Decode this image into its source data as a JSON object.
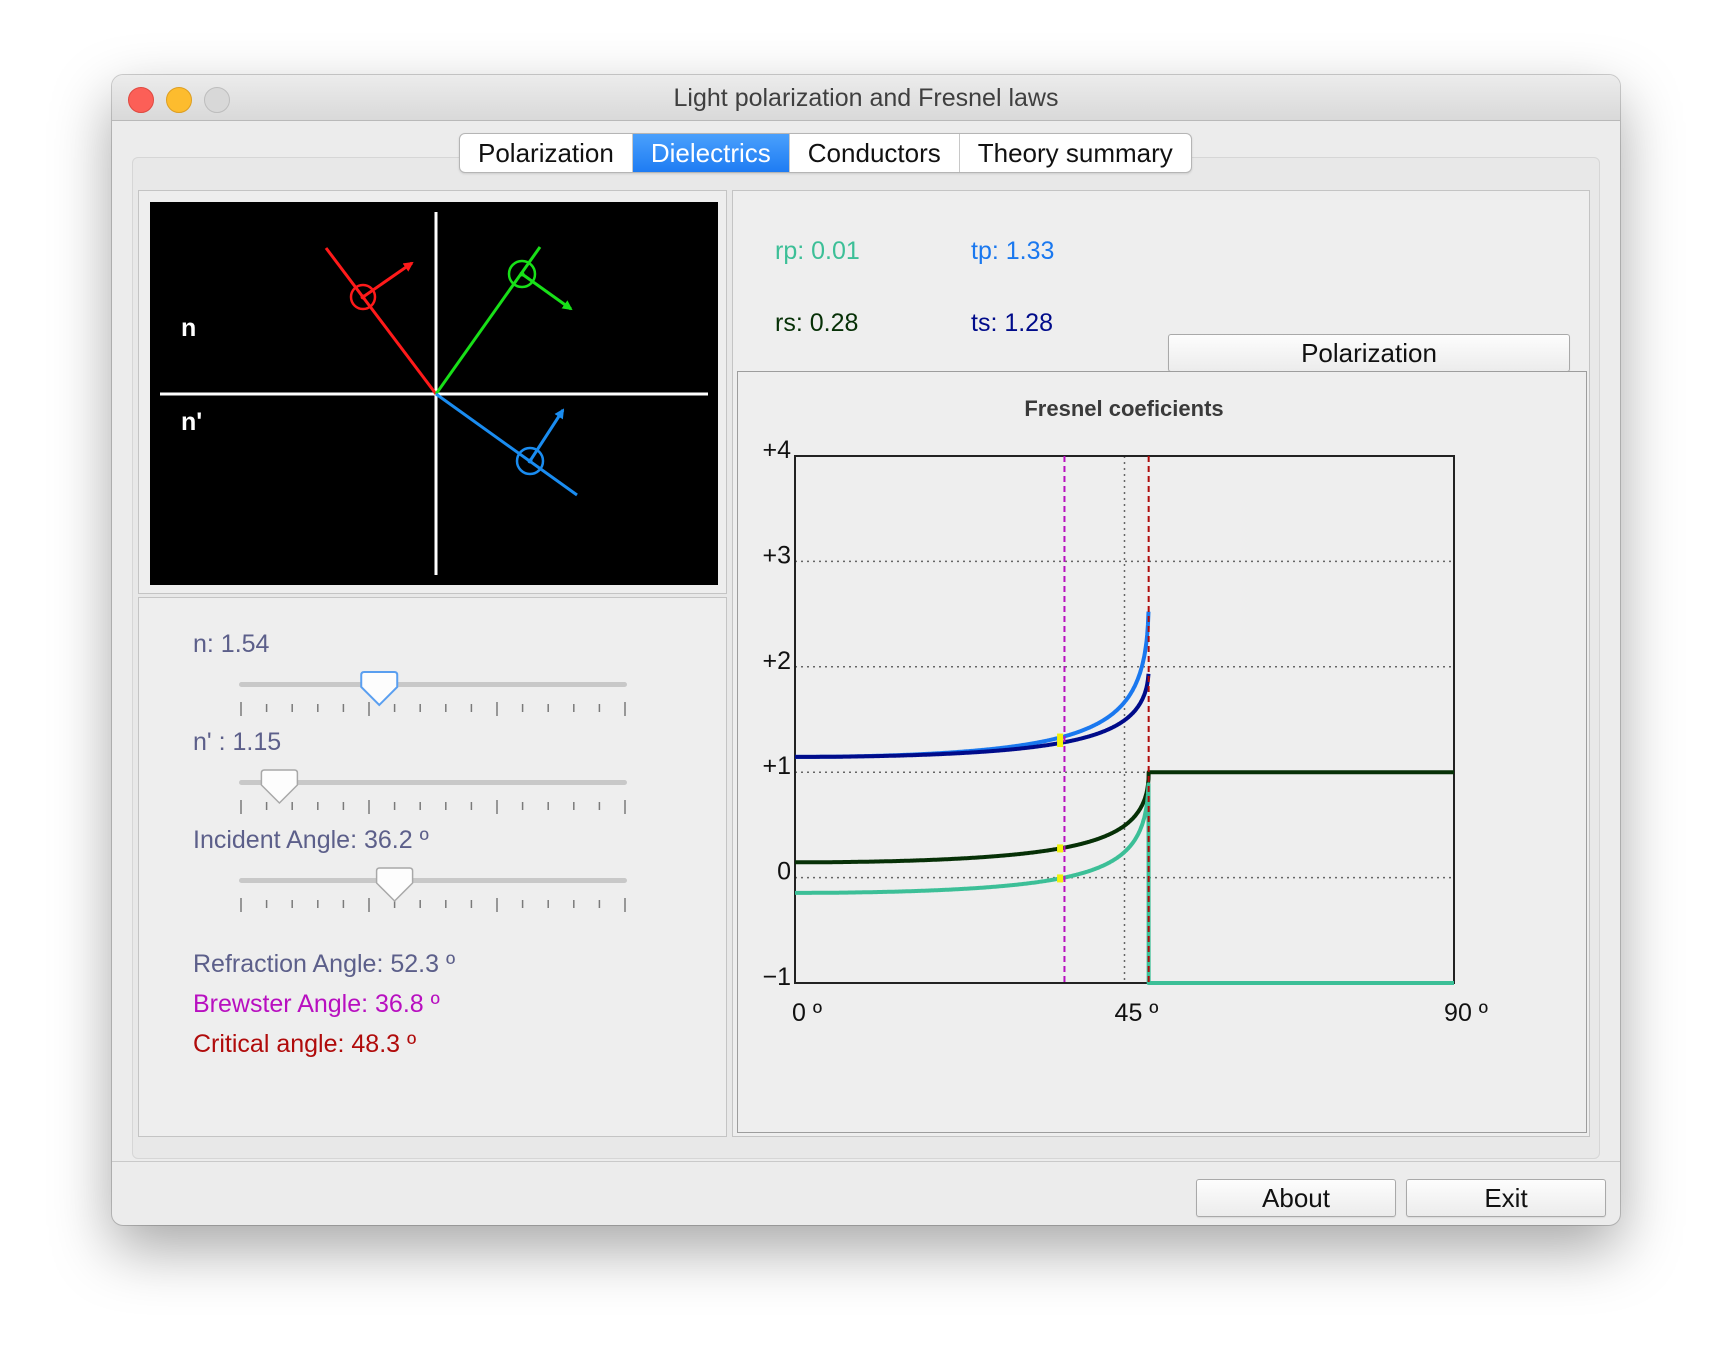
{
  "window": {
    "title": "Light polarization and Fresnel laws"
  },
  "tabs": [
    {
      "label": "Polarization",
      "active": false
    },
    {
      "label": "Dielectrics",
      "active": true
    },
    {
      "label": "Conductors",
      "active": false
    },
    {
      "label": "Theory summary",
      "active": false
    }
  ],
  "scene": {
    "medium_top": "n",
    "medium_bottom": "n'",
    "colors": {
      "incident": "#ff1a1a",
      "reflected": "#18e018",
      "transmitted": "#1a8cf0"
    }
  },
  "controls": {
    "n": {
      "label": "n: 1.54",
      "value": 1.54
    },
    "n_prime": {
      "label": "n' : 1.15",
      "value": 1.15
    },
    "incident": {
      "label": "Incident Angle: 36.2 º",
      "value": 36.2
    },
    "refraction_label": "Refraction Angle: 52.3 º",
    "brewster_label": "Brewster Angle: 36.8 º",
    "critical_label": "Critical angle: 48.3 º",
    "slider_positions": {
      "n": 0.36,
      "n_prime": 0.1,
      "incident": 0.4
    }
  },
  "coefficients": {
    "rp": "rp: 0.01",
    "tp": "tp: 1.33",
    "rs": "rs: 0.28",
    "ts": "ts: 1.28"
  },
  "polarization_button": "Polarization",
  "footer": {
    "about": "About",
    "exit": "Exit"
  },
  "chart_data": {
    "type": "line",
    "title": "Fresnel coeficients",
    "xlabel": "",
    "ylabel": "",
    "xlim": [
      0,
      90
    ],
    "ylim": [
      -1,
      4
    ],
    "x_ticks": [
      "0 º",
      "45 º",
      "90 º"
    ],
    "y_ticks": [
      "+4",
      "+3",
      "+2",
      "+1",
      "0",
      "−1"
    ],
    "n1": 1.54,
    "n2": 1.15,
    "incident_angle": 36.2,
    "brewster_angle": 36.8,
    "critical_angle": 48.3,
    "series": [
      {
        "color": "#1a78ef",
        "values": "tp"
      },
      {
        "color": "#000b8a",
        "values": "ts"
      },
      {
        "color": "#063006",
        "values": "rs"
      },
      {
        "color": "#3cbf97",
        "values": "rp"
      }
    ]
  }
}
